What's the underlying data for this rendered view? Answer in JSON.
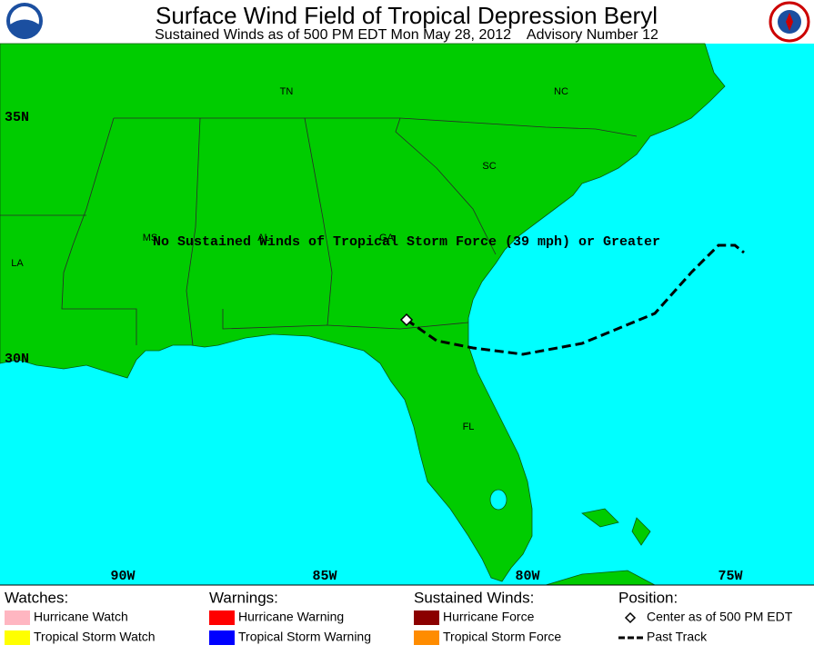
{
  "header": {
    "title": "Surface Wind Field of Tropical Depression Beryl",
    "subtitle": "Sustained Winds as of 500 PM EDT Mon May 28, 2012    Advisory Number 12"
  },
  "map": {
    "state_labels": [
      "TN",
      "NC",
      "SC",
      "MS",
      "AL",
      "GA",
      "LA",
      "FL"
    ],
    "lat_labels": [
      "35N",
      "30N"
    ],
    "lon_labels": [
      "90W",
      "85W",
      "80W",
      "75W"
    ],
    "note": "No Sustained Winds of Tropical Storm Force (39 mph) or Greater"
  },
  "legend": {
    "groups": [
      {
        "heading": "Watches:",
        "items": [
          "Hurricane Watch",
          "Tropical Storm Watch"
        ]
      },
      {
        "heading": "Warnings:",
        "items": [
          "Hurricane Warning",
          "Tropical Storm Warning"
        ]
      },
      {
        "heading": "Sustained Winds:",
        "items": [
          "Hurricane Force",
          "Tropical Storm Force"
        ]
      },
      {
        "heading": "Position:",
        "items": [
          "Center as of 500 PM EDT",
          "Past Track"
        ]
      }
    ]
  }
}
